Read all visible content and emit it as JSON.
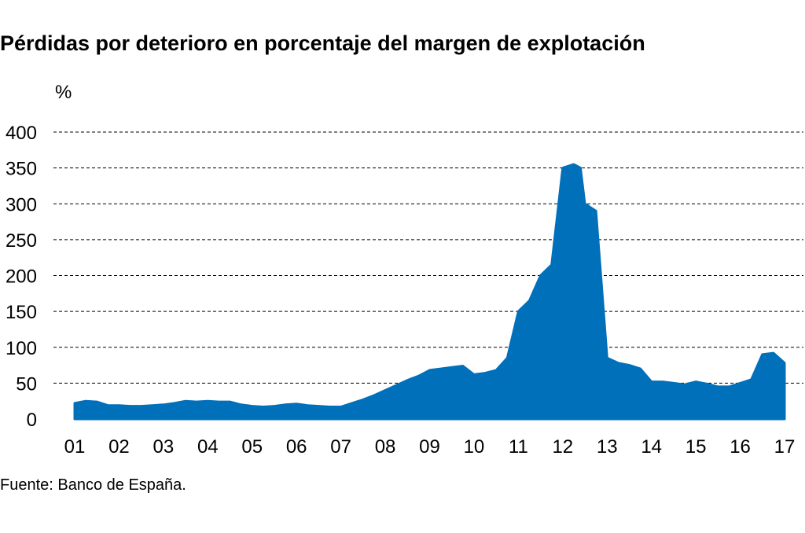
{
  "title": "Pérdidas por deterioro en porcentaje del margen de explotación",
  "unit_label": "%",
  "source": "Fuente: Banco de España.",
  "chart_data": {
    "type": "area",
    "ylim": [
      0,
      400
    ],
    "yticks": [
      0,
      50,
      100,
      150,
      200,
      250,
      300,
      350,
      400
    ],
    "xlim": [
      2001,
      2017
    ],
    "xticks": [
      {
        "label": "01",
        "value": 2001
      },
      {
        "label": "02",
        "value": 2002
      },
      {
        "label": "03",
        "value": 2003
      },
      {
        "label": "04",
        "value": 2004
      },
      {
        "label": "05",
        "value": 2005
      },
      {
        "label": "06",
        "value": 2006
      },
      {
        "label": "07",
        "value": 2007
      },
      {
        "label": "08",
        "value": 2008
      },
      {
        "label": "09",
        "value": 2009
      },
      {
        "label": "10",
        "value": 2010
      },
      {
        "label": "11",
        "value": 2011
      },
      {
        "label": "12",
        "value": 2012
      },
      {
        "label": "13",
        "value": 2013
      },
      {
        "label": "14",
        "value": 2014
      },
      {
        "label": "15",
        "value": 2015
      },
      {
        "label": "16",
        "value": 2016
      },
      {
        "label": "17",
        "value": 2017
      }
    ],
    "grid": true,
    "fill_color": "#0070bb",
    "series": [
      {
        "x": [
          2001.0,
          2001.25,
          2001.5,
          2001.75,
          2002.0,
          2002.25,
          2002.5,
          2002.75,
          2003.0,
          2003.25,
          2003.5,
          2003.75,
          2004.0,
          2004.25,
          2004.5,
          2004.75,
          2005.0,
          2005.25,
          2005.5,
          2005.75,
          2006.0,
          2006.25,
          2006.5,
          2006.75,
          2007.0,
          2007.25,
          2007.5,
          2007.75,
          2008.0,
          2008.25,
          2008.5,
          2008.75,
          2009.0,
          2009.25,
          2009.5,
          2009.75,
          2010.0,
          2010.25,
          2010.5,
          2010.75,
          2011.0,
          2011.25,
          2011.5,
          2011.75,
          2012.0,
          2012.25,
          2012.4,
          2012.5,
          2012.75,
          2013.0,
          2013.25,
          2013.5,
          2013.75,
          2014.0,
          2014.25,
          2014.5,
          2014.75,
          2015.0,
          2015.25,
          2015.5,
          2015.75,
          2016.0,
          2016.25,
          2016.5,
          2016.75,
          2017.0
        ],
        "values": [
          22,
          25,
          24,
          19,
          19,
          18,
          18,
          19,
          20,
          22,
          25,
          24,
          25,
          24,
          24,
          20,
          18,
          17,
          18,
          20,
          21,
          19,
          18,
          17,
          17,
          22,
          27,
          33,
          40,
          47,
          54,
          60,
          68,
          70,
          72,
          74,
          62,
          64,
          68,
          85,
          150,
          165,
          200,
          215,
          350,
          355,
          350,
          300,
          290,
          85,
          78,
          75,
          70,
          52,
          52,
          50,
          48,
          52,
          49,
          45,
          45,
          50,
          55,
          90,
          92,
          78
        ]
      }
    ]
  }
}
